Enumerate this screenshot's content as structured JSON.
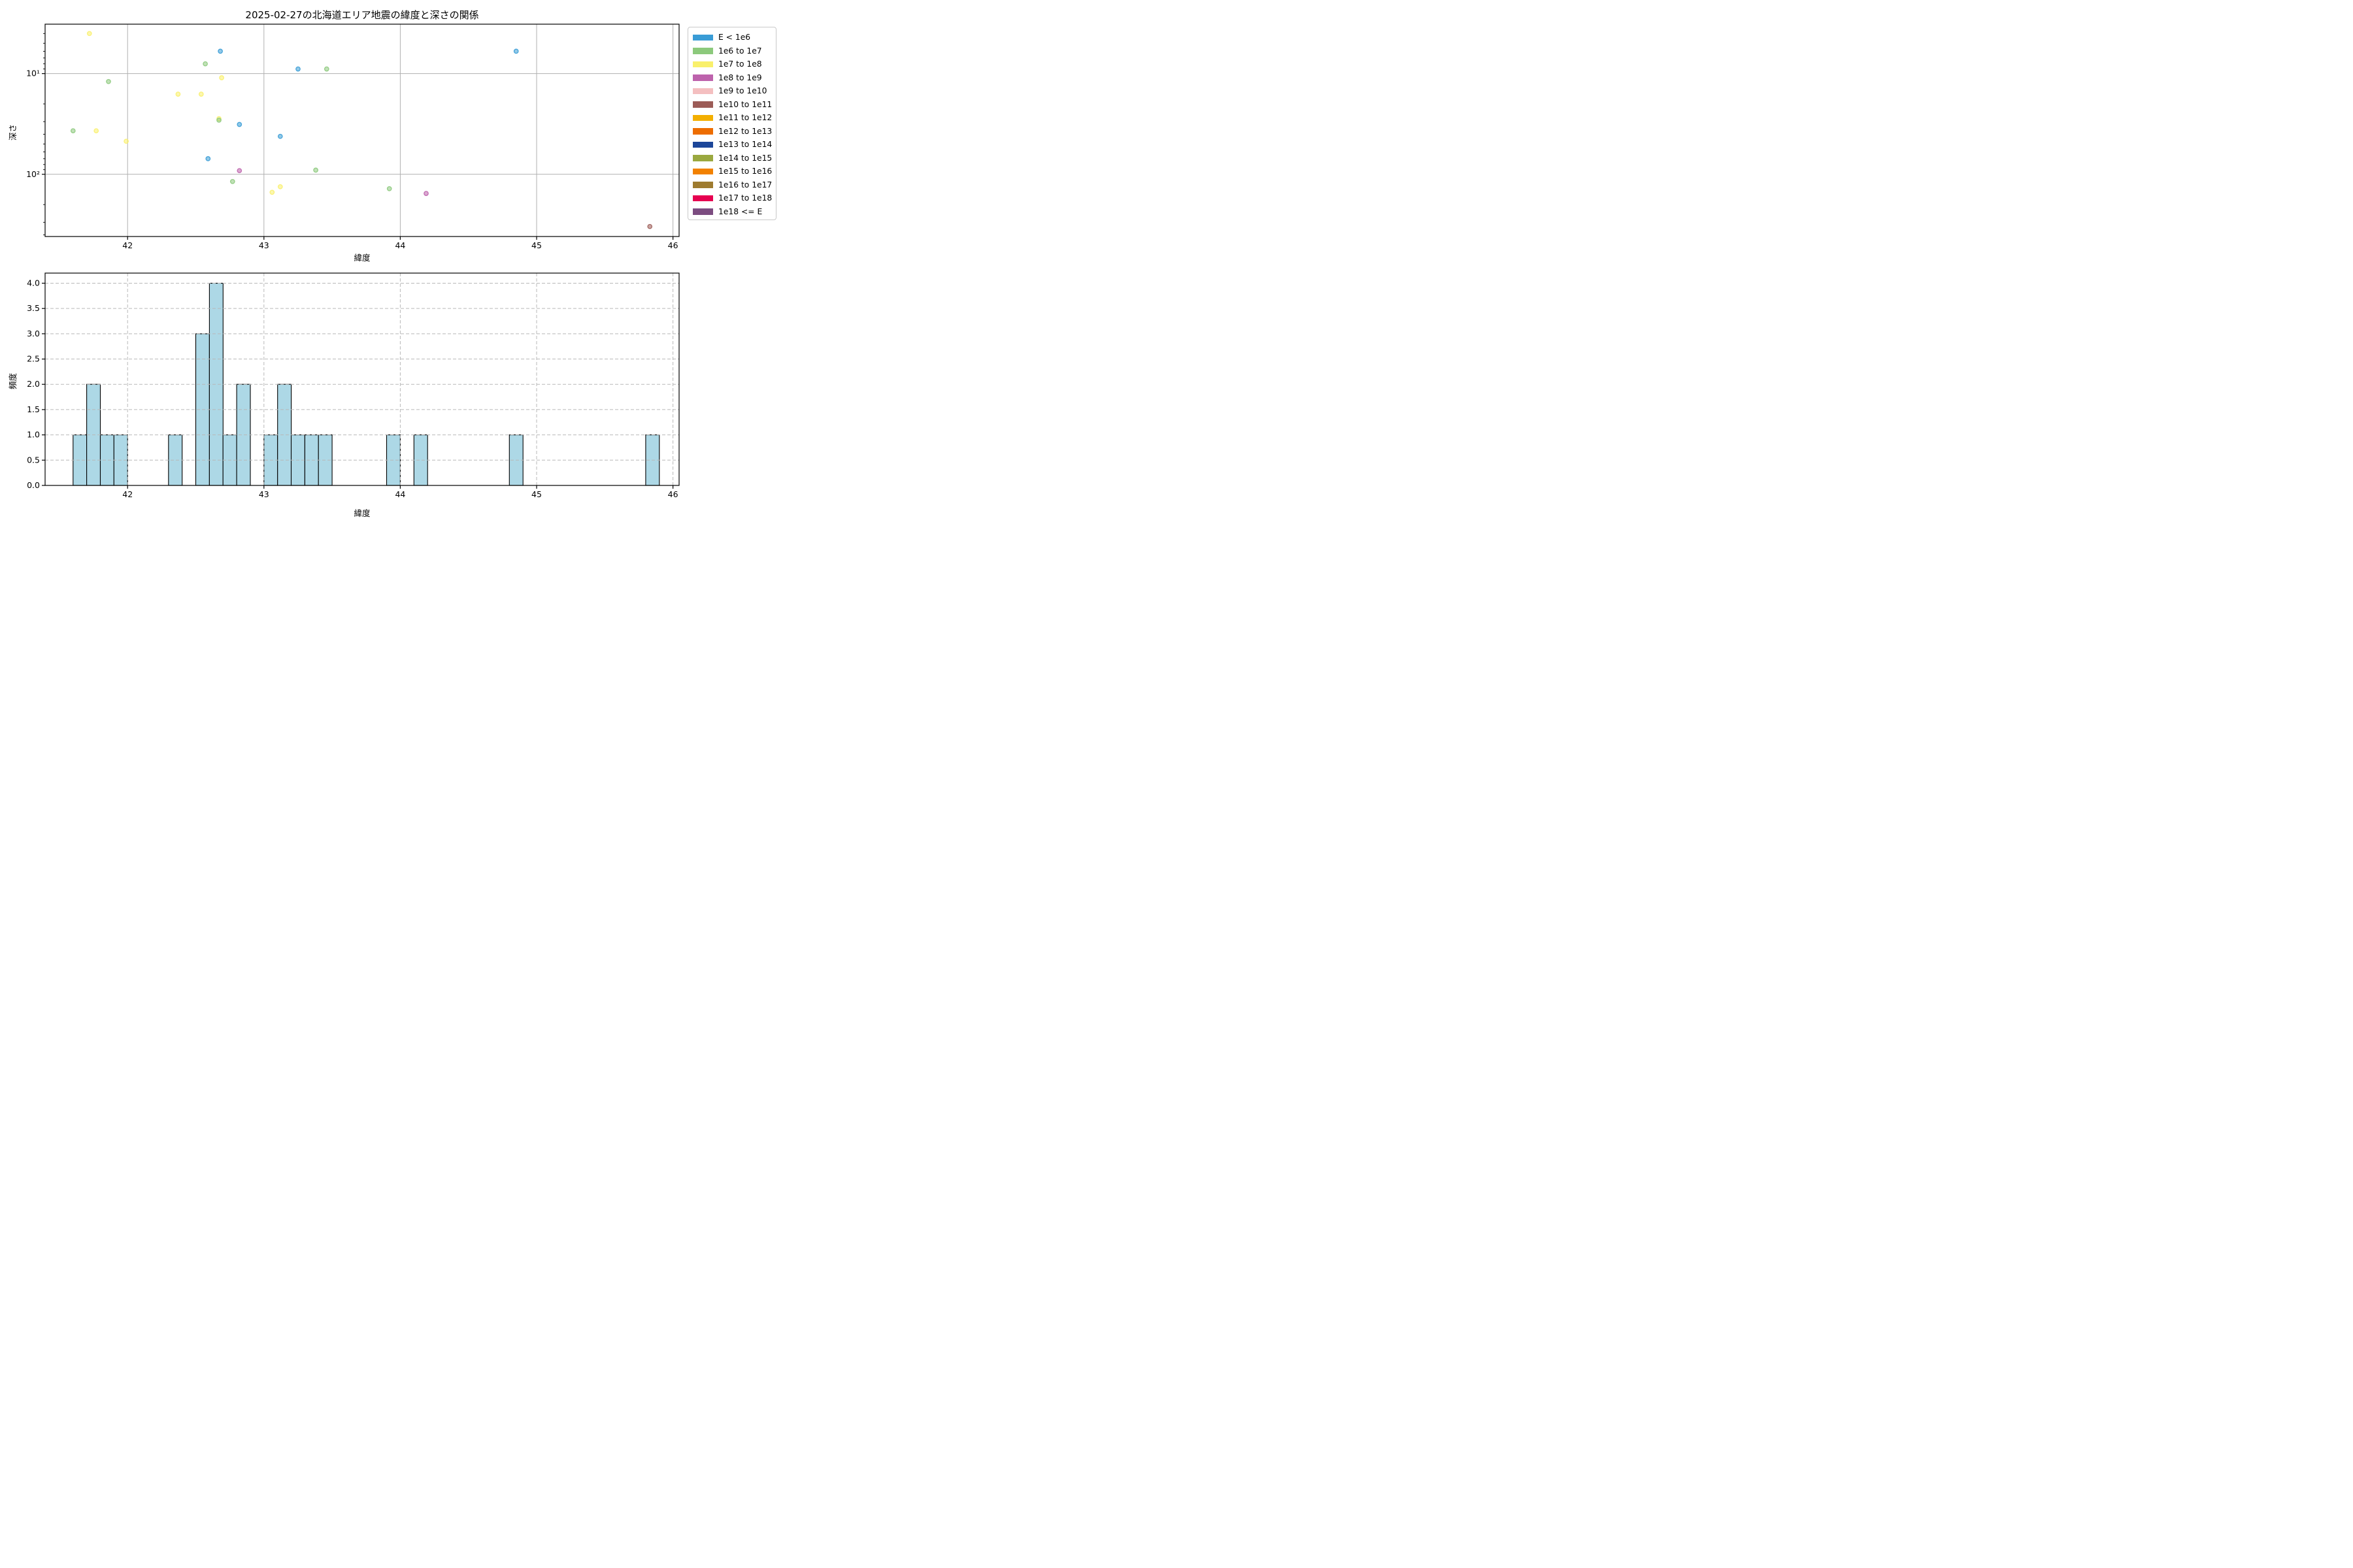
{
  "figure_title": "2025-02-27の北海道エリア地震の緯度と深さの関係",
  "style": {
    "grid_color": "#b0b0b0",
    "dashed_grid_color": "#b9b9b9",
    "spine_color": "#000000",
    "marker_fill_opacity": 0.55,
    "marker_edge_opacity": 0.9
  },
  "chart_data": [
    {
      "type": "scatter",
      "title": "2025-02-27の北海道エリア地震の緯度と深さの関係",
      "xlabel": "緯度",
      "ylabel": "深さ",
      "x_scale": "linear",
      "y_scale": "log",
      "y_inverted": true,
      "xlim": [
        41.395,
        46.045
      ],
      "ylim_depth": [
        3.23,
        415
      ],
      "grid": "solid",
      "legend_position": "outside upper right",
      "x_ticks": [
        {
          "v": 42,
          "label": "42"
        },
        {
          "v": 43,
          "label": "43"
        },
        {
          "v": 44,
          "label": "44"
        },
        {
          "v": 45,
          "label": "45"
        },
        {
          "v": 46,
          "label": "46"
        }
      ],
      "y_ticks": [
        {
          "v": 10,
          "label": "10¹"
        },
        {
          "v": 100,
          "label": "10²"
        }
      ],
      "y_minor_ticks": [
        4,
        5,
        6,
        7,
        8,
        9,
        20,
        30,
        40,
        50,
        60,
        70,
        80,
        90,
        200,
        300,
        400
      ],
      "bins": [
        {
          "label": "E < 1e6",
          "color": "#399cd6"
        },
        {
          "label": "1e6 to 1e7",
          "color": "#8cc97c"
        },
        {
          "label": "1e7 to 1e8",
          "color": "#f9f06b"
        },
        {
          "label": "1e8 to 1e9",
          "color": "#bd62ac"
        },
        {
          "label": "1e9 to 1e10",
          "color": "#f4bfc0"
        },
        {
          "label": "1e10 to 1e11",
          "color": "#9c5c57"
        },
        {
          "label": "1e11 to 1e12",
          "color": "#f3af00"
        },
        {
          "label": "1e12 to 1e13",
          "color": "#ed6d01"
        },
        {
          "label": "1e13 to 1e14",
          "color": "#1c4699"
        },
        {
          "label": "1e14 to 1e15",
          "color": "#9aa83f"
        },
        {
          "label": "1e15 to 1e16",
          "color": "#f28100"
        },
        {
          "label": "1e16 to 1e17",
          "color": "#9e7b2f"
        },
        {
          "label": "1e17 to 1e18",
          "color": "#e60050"
        },
        {
          "label": "1e18 <= E",
          "color": "#7c4c80"
        }
      ],
      "points": [
        {
          "lat": 41.72,
          "depth": 4.0,
          "bin": "1e7 to 1e8"
        },
        {
          "lat": 42.68,
          "depth": 6.0,
          "bin": "E < 1e6"
        },
        {
          "lat": 44.85,
          "depth": 6.0,
          "bin": "E < 1e6"
        },
        {
          "lat": 42.57,
          "depth": 8.0,
          "bin": "1e6 to 1e7"
        },
        {
          "lat": 43.25,
          "depth": 9.0,
          "bin": "E < 1e6"
        },
        {
          "lat": 43.46,
          "depth": 9.0,
          "bin": "1e6 to 1e7"
        },
        {
          "lat": 42.69,
          "depth": 11,
          "bin": "1e7 to 1e8"
        },
        {
          "lat": 41.86,
          "depth": 12,
          "bin": "1e6 to 1e7"
        },
        {
          "lat": 42.37,
          "depth": 16,
          "bin": "1e7 to 1e8"
        },
        {
          "lat": 42.54,
          "depth": 16,
          "bin": "1e7 to 1e8"
        },
        {
          "lat": 42.67,
          "depth": 28,
          "bin": "1e7 to 1e8"
        },
        {
          "lat": 42.67,
          "depth": 29,
          "bin": "1e6 to 1e7"
        },
        {
          "lat": 42.82,
          "depth": 32,
          "bin": "E < 1e6"
        },
        {
          "lat": 41.6,
          "depth": 37,
          "bin": "1e6 to 1e7"
        },
        {
          "lat": 41.77,
          "depth": 37,
          "bin": "1e7 to 1e8"
        },
        {
          "lat": 43.12,
          "depth": 42,
          "bin": "E < 1e6"
        },
        {
          "lat": 41.99,
          "depth": 47,
          "bin": "1e7 to 1e8"
        },
        {
          "lat": 42.59,
          "depth": 70,
          "bin": "E < 1e6"
        },
        {
          "lat": 43.38,
          "depth": 91,
          "bin": "1e6 to 1e7"
        },
        {
          "lat": 42.82,
          "depth": 92,
          "bin": "1e8 to 1e9"
        },
        {
          "lat": 42.77,
          "depth": 118,
          "bin": "1e6 to 1e7"
        },
        {
          "lat": 43.12,
          "depth": 133,
          "bin": "1e7 to 1e8"
        },
        {
          "lat": 43.92,
          "depth": 139,
          "bin": "1e6 to 1e7"
        },
        {
          "lat": 43.06,
          "depth": 151,
          "bin": "1e7 to 1e8"
        },
        {
          "lat": 44.19,
          "depth": 155,
          "bin": "1e8 to 1e9"
        },
        {
          "lat": 45.83,
          "depth": 330,
          "bin": "1e10 to 1e11"
        }
      ]
    },
    {
      "type": "bar",
      "histogram": true,
      "xlabel": "緯度",
      "ylabel": "頻度",
      "xlim": [
        41.395,
        46.045
      ],
      "ylim": [
        0,
        4.2
      ],
      "grid": "dashed",
      "bin_width": 0.1,
      "bar_fill": "#add8e6",
      "bar_edge": "#000000",
      "x_ticks": [
        {
          "v": 42,
          "label": "42"
        },
        {
          "v": 43,
          "label": "43"
        },
        {
          "v": 44,
          "label": "44"
        },
        {
          "v": 45,
          "label": "45"
        },
        {
          "v": 46,
          "label": "46"
        }
      ],
      "y_ticks": [
        {
          "v": 0,
          "label": "0.0"
        },
        {
          "v": 0.5,
          "label": "0.5"
        },
        {
          "v": 1,
          "label": "1.0"
        },
        {
          "v": 1.5,
          "label": "1.5"
        },
        {
          "v": 2,
          "label": "2.0"
        },
        {
          "v": 2.5,
          "label": "2.5"
        },
        {
          "v": 3,
          "label": "3.0"
        },
        {
          "v": 3.5,
          "label": "3.5"
        },
        {
          "v": 4,
          "label": "4.0"
        }
      ],
      "bars": [
        {
          "lat0": 41.6,
          "count": 1
        },
        {
          "lat0": 41.7,
          "count": 2
        },
        {
          "lat0": 41.8,
          "count": 1
        },
        {
          "lat0": 41.9,
          "count": 1
        },
        {
          "lat0": 42.3,
          "count": 1
        },
        {
          "lat0": 42.5,
          "count": 3
        },
        {
          "lat0": 42.6,
          "count": 4
        },
        {
          "lat0": 42.7,
          "count": 1
        },
        {
          "lat0": 42.8,
          "count": 2
        },
        {
          "lat0": 43.0,
          "count": 1
        },
        {
          "lat0": 43.1,
          "count": 2
        },
        {
          "lat0": 43.2,
          "count": 1
        },
        {
          "lat0": 43.3,
          "count": 1
        },
        {
          "lat0": 43.4,
          "count": 1
        },
        {
          "lat0": 43.9,
          "count": 1
        },
        {
          "lat0": 44.1,
          "count": 1
        },
        {
          "lat0": 44.8,
          "count": 1
        },
        {
          "lat0": 45.8,
          "count": 1
        }
      ]
    }
  ]
}
